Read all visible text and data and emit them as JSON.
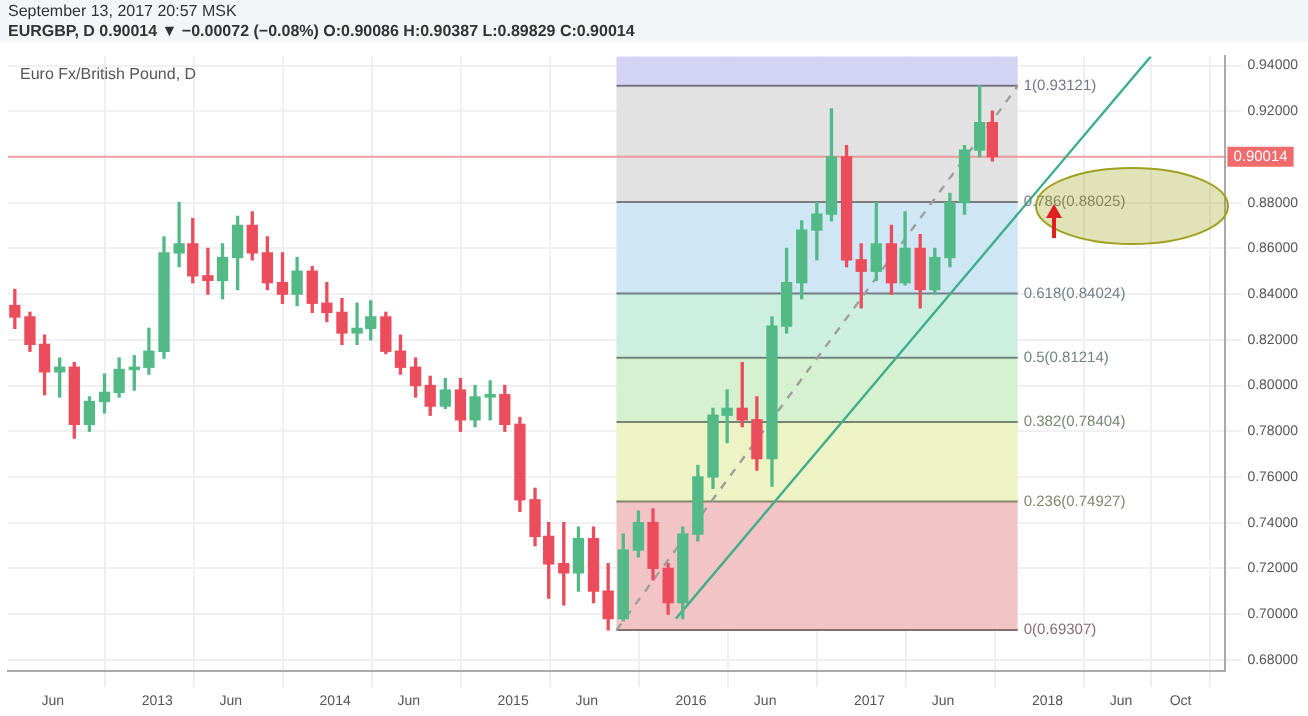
{
  "chart_data": {
    "type": "candlestick",
    "title": "Euro Fx/British Pound, D",
    "subtitle": "EURGBP, D 0.90014 ▼ −0.00072 (−0.08%) O:0.90086 H:0.90387 L:0.89829 C:0.90014",
    "annotations": [
      "September 13, 2017 20:57 MSK"
    ],
    "x": [
      "2012-03-15",
      "2012-04-15",
      "2012-05-15",
      "2012-06-15",
      "2012-07-15",
      "2012-08-15",
      "2012-09-15",
      "2012-10-15",
      "2012-11-15",
      "2012-12-15",
      "2013-01-15",
      "2013-02-15",
      "2013-03-15",
      "2013-04-15",
      "2013-05-15",
      "2013-06-15",
      "2013-07-15",
      "2013-08-15",
      "2013-09-15",
      "2013-10-15",
      "2013-11-15",
      "2013-12-15",
      "2014-01-15",
      "2014-02-15",
      "2014-03-15",
      "2014-04-15",
      "2014-05-15",
      "2014-06-15",
      "2014-07-15",
      "2014-08-15",
      "2014-09-15",
      "2014-10-15",
      "2014-11-15",
      "2014-12-15",
      "2015-01-15",
      "2015-02-15",
      "2015-03-15",
      "2015-04-15",
      "2015-05-15",
      "2015-06-15",
      "2015-07-15",
      "2015-08-15",
      "2015-09-15",
      "2015-10-15",
      "2015-11-15",
      "2015-12-15",
      "2016-01-15",
      "2016-02-15",
      "2016-03-15",
      "2016-04-15",
      "2016-05-15",
      "2016-06-15",
      "2016-07-15",
      "2016-08-15",
      "2016-09-15",
      "2016-10-15",
      "2016-11-15",
      "2016-12-15",
      "2017-01-15",
      "2017-02-15",
      "2017-03-15",
      "2017-04-15",
      "2017-05-15",
      "2017-06-15",
      "2017-07-15",
      "2017-08-15",
      "2017-09-10"
    ],
    "ohlc": [
      [
        0.835,
        0.842,
        0.825,
        0.83
      ],
      [
        0.83,
        0.832,
        0.815,
        0.818
      ],
      [
        0.818,
        0.822,
        0.796,
        0.806
      ],
      [
        0.806,
        0.812,
        0.795,
        0.808
      ],
      [
        0.808,
        0.81,
        0.777,
        0.783
      ],
      [
        0.783,
        0.795,
        0.78,
        0.793
      ],
      [
        0.793,
        0.805,
        0.788,
        0.797
      ],
      [
        0.797,
        0.812,
        0.795,
        0.807
      ],
      [
        0.807,
        0.813,
        0.798,
        0.808
      ],
      [
        0.808,
        0.825,
        0.805,
        0.815
      ],
      [
        0.815,
        0.865,
        0.812,
        0.858
      ],
      [
        0.858,
        0.88,
        0.852,
        0.862
      ],
      [
        0.862,
        0.873,
        0.845,
        0.848
      ],
      [
        0.848,
        0.86,
        0.84,
        0.846
      ],
      [
        0.846,
        0.862,
        0.838,
        0.856
      ],
      [
        0.856,
        0.874,
        0.842,
        0.87
      ],
      [
        0.87,
        0.876,
        0.855,
        0.858
      ],
      [
        0.858,
        0.865,
        0.842,
        0.845
      ],
      [
        0.845,
        0.858,
        0.836,
        0.84
      ],
      [
        0.84,
        0.856,
        0.835,
        0.85
      ],
      [
        0.85,
        0.852,
        0.832,
        0.836
      ],
      [
        0.836,
        0.845,
        0.828,
        0.832
      ],
      [
        0.832,
        0.838,
        0.818,
        0.823
      ],
      [
        0.823,
        0.836,
        0.818,
        0.825
      ],
      [
        0.825,
        0.837,
        0.82,
        0.83
      ],
      [
        0.83,
        0.832,
        0.814,
        0.815
      ],
      [
        0.815,
        0.822,
        0.805,
        0.808
      ],
      [
        0.808,
        0.812,
        0.795,
        0.8
      ],
      [
        0.8,
        0.804,
        0.787,
        0.791
      ],
      [
        0.791,
        0.803,
        0.79,
        0.798
      ],
      [
        0.798,
        0.803,
        0.78,
        0.785
      ],
      [
        0.785,
        0.8,
        0.782,
        0.795
      ],
      [
        0.795,
        0.802,
        0.785,
        0.796
      ],
      [
        0.796,
        0.8,
        0.78,
        0.783
      ],
      [
        0.783,
        0.786,
        0.745,
        0.75
      ],
      [
        0.75,
        0.755,
        0.73,
        0.734
      ],
      [
        0.734,
        0.74,
        0.707,
        0.722
      ],
      [
        0.722,
        0.74,
        0.704,
        0.718
      ],
      [
        0.718,
        0.738,
        0.71,
        0.733
      ],
      [
        0.733,
        0.738,
        0.705,
        0.71
      ],
      [
        0.71,
        0.722,
        0.69307,
        0.698
      ],
      [
        0.698,
        0.735,
        0.697,
        0.728
      ],
      [
        0.728,
        0.745,
        0.725,
        0.74
      ],
      [
        0.74,
        0.746,
        0.715,
        0.72
      ],
      [
        0.72,
        0.722,
        0.7,
        0.705
      ],
      [
        0.705,
        0.738,
        0.698,
        0.735
      ],
      [
        0.735,
        0.765,
        0.732,
        0.76
      ],
      [
        0.76,
        0.79,
        0.755,
        0.787
      ],
      [
        0.787,
        0.798,
        0.775,
        0.79
      ],
      [
        0.79,
        0.81,
        0.782,
        0.785
      ],
      [
        0.785,
        0.795,
        0.763,
        0.768
      ],
      [
        0.768,
        0.83,
        0.756,
        0.826
      ],
      [
        0.826,
        0.86,
        0.823,
        0.845
      ],
      [
        0.845,
        0.872,
        0.838,
        0.868
      ],
      [
        0.868,
        0.88,
        0.855,
        0.875
      ],
      [
        0.875,
        0.921,
        0.872,
        0.9
      ],
      [
        0.9,
        0.905,
        0.852,
        0.855
      ],
      [
        0.855,
        0.862,
        0.834,
        0.85
      ],
      [
        0.85,
        0.88,
        0.846,
        0.862
      ],
      [
        0.862,
        0.87,
        0.84,
        0.845
      ],
      [
        0.845,
        0.876,
        0.844,
        0.86
      ],
      [
        0.86,
        0.866,
        0.834,
        0.842
      ],
      [
        0.842,
        0.86,
        0.84,
        0.856
      ],
      [
        0.856,
        0.884,
        0.852,
        0.88
      ],
      [
        0.88,
        0.905,
        0.875,
        0.903
      ],
      [
        0.903,
        0.93121,
        0.9,
        0.915
      ],
      [
        0.915,
        0.92,
        0.89829,
        0.90014
      ]
    ],
    "colors": [
      "#eb4d5c",
      "#eb4d5c",
      "#eb4d5c",
      "#53b987",
      "#eb4d5c",
      "#53b987",
      "#53b987",
      "#53b987",
      "#53b987",
      "#53b987",
      "#53b987",
      "#53b987",
      "#eb4d5c",
      "#eb4d5c",
      "#53b987",
      "#53b987",
      "#eb4d5c",
      "#eb4d5c",
      "#eb4d5c",
      "#53b987",
      "#eb4d5c",
      "#eb4d5c",
      "#eb4d5c",
      "#53b987",
      "#53b987",
      "#eb4d5c",
      "#eb4d5c",
      "#eb4d5c",
      "#eb4d5c",
      "#53b987",
      "#eb4d5c",
      "#53b987",
      "#53b987",
      "#eb4d5c",
      "#eb4d5c",
      "#eb4d5c",
      "#eb4d5c",
      "#eb4d5c",
      "#53b987",
      "#eb4d5c",
      "#eb4d5c",
      "#53b987",
      "#53b987",
      "#eb4d5c",
      "#eb4d5c",
      "#53b987",
      "#53b987",
      "#53b987",
      "#53b987",
      "#eb4d5c",
      "#eb4d5c",
      "#53b987",
      "#53b987",
      "#53b987",
      "#53b987",
      "#53b987",
      "#eb4d5c",
      "#eb4d5c",
      "#53b987",
      "#eb4d5c",
      "#53b987",
      "#eb4d5c",
      "#53b987",
      "#53b987",
      "#53b987",
      "#53b987",
      "#eb4d5c"
    ],
    "series": [
      {
        "type": "line",
        "x": [
          "2015-12-01",
          "2018-08-01"
        ],
        "values": [
          0.698,
          0.944
        ],
        "color": "#3fae8c",
        "line_style": "solid"
      },
      {
        "type": "line",
        "x": [
          "2015-08-01",
          "2017-11-01"
        ],
        "values": [
          0.693,
          0.931
        ],
        "color": "#9e9e9e",
        "line_style": "dashed"
      }
    ],
    "bands": [
      {
        "axis": "y",
        "from": 0.69307,
        "to": 0.74927,
        "label": "0(0.69307)",
        "color": "#f2c4c6"
      },
      {
        "axis": "y",
        "from": 0.74927,
        "to": 0.78404,
        "label": "0.236(0.74927)",
        "color": "#eef3c6"
      },
      {
        "axis": "y",
        "from": 0.78404,
        "to": 0.81214,
        "label": "0.382(0.78404)",
        "color": "#d6f1cf"
      },
      {
        "axis": "y",
        "from": 0.81214,
        "to": 0.84024,
        "label": "0.5(0.81214)",
        "color": "#cdefe0"
      },
      {
        "axis": "y",
        "from": 0.84024,
        "to": 0.88025,
        "label": "0.618(0.84024)",
        "color": "#cfe6f5"
      },
      {
        "axis": "y",
        "from": 0.88025,
        "to": 0.93121,
        "label": "0.786(0.88025)",
        "color": "#e2e2e2"
      },
      {
        "axis": "y",
        "from": 0.93121,
        "to": 0.944,
        "label": "1(0.93121)",
        "color": "#d3d3f3"
      }
    ],
    "ref_lines": [
      {
        "axis": "y",
        "value": 0.90014,
        "label": "0.90014",
        "color": "#f06b6b"
      }
    ],
    "xlim": [
      "2012-03-01",
      "2019-01-01"
    ],
    "xticks": [
      {
        "value": "2012-06-01",
        "label": "Jun"
      },
      {
        "value": "2013-01-01",
        "label": "2013"
      },
      {
        "value": "2013-06-01",
        "label": "Jun"
      },
      {
        "value": "2014-01-01",
        "label": "2014"
      },
      {
        "value": "2014-06-01",
        "label": "Jun"
      },
      {
        "value": "2015-01-01",
        "label": "2015"
      },
      {
        "value": "2015-06-01",
        "label": "Jun"
      },
      {
        "value": "2016-01-01",
        "label": "2016"
      },
      {
        "value": "2016-06-01",
        "label": "Jun"
      },
      {
        "value": "2017-01-01",
        "label": "2017"
      },
      {
        "value": "2017-06-01",
        "label": "Jun"
      },
      {
        "value": "2018-01-01",
        "label": "2018"
      },
      {
        "value": "2018-06-01",
        "label": "Jun"
      },
      {
        "value": "2018-10-01",
        "label": "Oct"
      }
    ],
    "ylim": [
      0.675,
      0.944
    ],
    "yticks": [
      {
        "value": 0.68,
        "label": "0.68000"
      },
      {
        "value": 0.7,
        "label": "0.70000"
      },
      {
        "value": 0.72,
        "label": "0.72000"
      },
      {
        "value": 0.74,
        "label": "0.74000"
      },
      {
        "value": 0.76,
        "label": "0.76000"
      },
      {
        "value": 0.78,
        "label": "0.78000"
      },
      {
        "value": 0.8,
        "label": "0.80000"
      },
      {
        "value": 0.82,
        "label": "0.82000"
      },
      {
        "value": 0.84,
        "label": "0.84000"
      },
      {
        "value": 0.86,
        "label": "0.86000"
      },
      {
        "value": 0.88,
        "label": "0.88000"
      },
      {
        "value": 0.9,
        "label": null
      },
      {
        "value": 0.92,
        "label": "0.92000"
      },
      {
        "value": 0.94,
        "label": "0.94000"
      }
    ],
    "grid": true,
    "marker": "none"
  }
}
